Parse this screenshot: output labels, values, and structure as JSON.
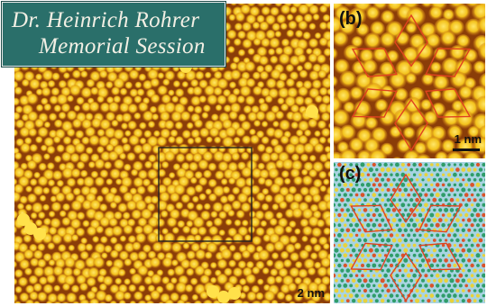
{
  "banner": {
    "line1": "Dr. Heinrich Rohrer",
    "line2": "Memorial Session"
  },
  "panels": {
    "a": {
      "scale_label": "2 nm"
    },
    "b": {
      "label": "(b)",
      "scale_label": "1 nm"
    },
    "c": {
      "label": "(c)"
    }
  },
  "colors": {
    "stm_dark": "#8a3d08",
    "stm_mid": "#c46a10",
    "stm_bright": "#f3c21c",
    "highlight_box": "#222222",
    "rhombus_stroke": "#e0421f",
    "model_bg": "#a8d4e2",
    "model_green": "#2f9d6a",
    "model_yellow": "#e8d23a",
    "model_red": "#d9542b"
  }
}
